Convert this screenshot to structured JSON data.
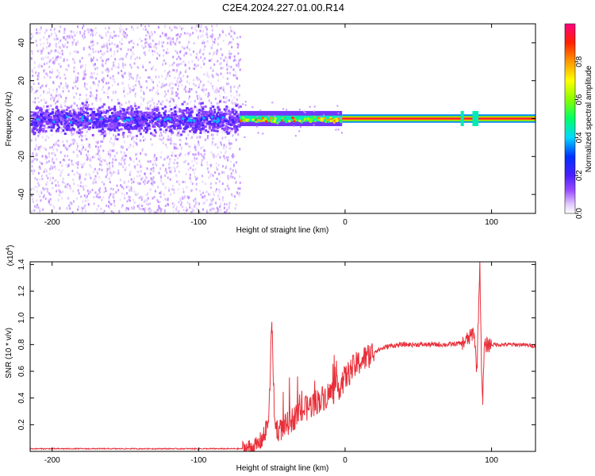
{
  "title": "C2E4.2024.227.01.00.R14",
  "chart_data": [
    {
      "type": "heatmap",
      "xlabel": "Height of straight line (km)",
      "ylabel": "Frequency (Hz)",
      "xlim": [
        -215,
        130
      ],
      "ylim": [
        -50,
        50
      ],
      "xticks": [
        -200,
        -100,
        0,
        100
      ],
      "yticks": [
        -40,
        -20,
        0,
        20,
        40
      ],
      "colorbar": {
        "label": "Normalized spectral amplitude",
        "range": [
          0,
          1
        ],
        "ticks": [
          "0.0",
          "0.2",
          "0.4",
          "0.6",
          "0.8"
        ]
      },
      "regions": [
        {
          "x_range": [
            -215,
            -72
          ],
          "description_values": {
            "freq_spread_hz": 50,
            "core_spread_hz": 8,
            "amplitude": 0.15
          }
        },
        {
          "x_range": [
            -72,
            -2
          ],
          "description_values": {
            "freq_spread_hz": 4,
            "amplitude": 0.5
          }
        },
        {
          "x_range": [
            -2,
            130
          ],
          "description_values": {
            "freq_spread_hz": 2,
            "amplitude": 0.95
          }
        }
      ]
    },
    {
      "type": "line",
      "xlabel": "Height of straight line (km)",
      "ylabel": "SNR (10 * v/v)",
      "y_multiplier": "(x10",
      "y_multiplier_exp": "4",
      "xlim": [
        -215,
        130
      ],
      "ylim": [
        0,
        1.42
      ],
      "xticks": [
        -200,
        -100,
        0,
        100
      ],
      "yticks": [
        0.2,
        0.4,
        0.6,
        0.8,
        1.0,
        1.2,
        1.4
      ],
      "grid": false,
      "series": [
        {
          "color": "#e8303a",
          "x": [
            -215,
            -150,
            -100,
            -70,
            -60,
            -55,
            -52,
            -50,
            -48,
            -45,
            -40,
            -35,
            -30,
            -25,
            -20,
            -15,
            -10,
            -5,
            0,
            5,
            10,
            15,
            20,
            25,
            30,
            40,
            50,
            60,
            70,
            80,
            85,
            88,
            90,
            92,
            93,
            94,
            95,
            97,
            100,
            110,
            120,
            130
          ],
          "y": [
            0.02,
            0.02,
            0.02,
            0.02,
            0.04,
            0.12,
            0.25,
            0.97,
            0.2,
            0.15,
            0.2,
            0.25,
            0.3,
            0.33,
            0.37,
            0.4,
            0.44,
            0.47,
            0.55,
            0.62,
            0.67,
            0.71,
            0.75,
            0.77,
            0.79,
            0.8,
            0.8,
            0.8,
            0.8,
            0.81,
            0.85,
            0.9,
            0.6,
            1.43,
            0.7,
            0.35,
            0.78,
            0.8,
            0.8,
            0.8,
            0.8,
            0.79
          ]
        }
      ]
    }
  ]
}
